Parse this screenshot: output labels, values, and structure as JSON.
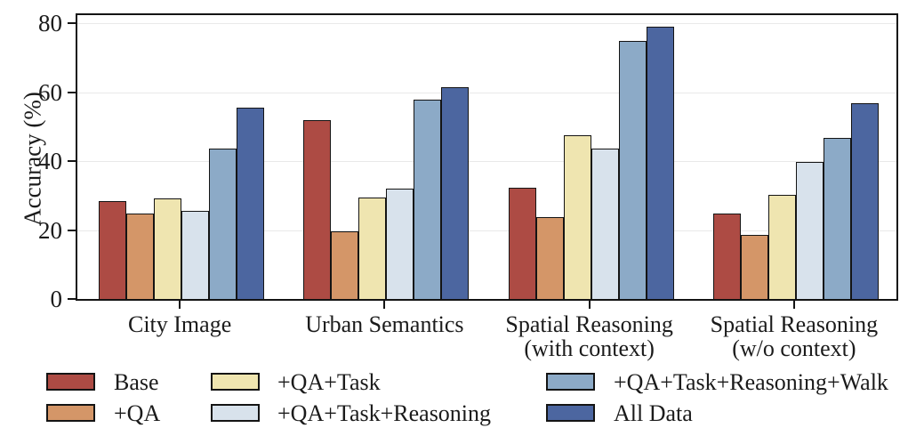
{
  "chart_data": {
    "type": "bar",
    "title": "",
    "ylabel": "Accuracy (%)",
    "ylim": [
      0,
      83
    ],
    "yticks": [
      0,
      20,
      40,
      60,
      80
    ],
    "grid": true,
    "grid_color": "#e9e9e9",
    "axes_box": true,
    "bar_edge_color": "#141414",
    "legend_position": "bottom",
    "categories": [
      "City Image",
      "Urban Semantics",
      "Spatial Reasoning\n(with context)",
      "Spatial Reasoning\n(w/o context)"
    ],
    "series": [
      {
        "name": "Base",
        "color": "#ad4b44",
        "values": [
          28.5,
          52.0,
          32.3,
          24.7
        ]
      },
      {
        "name": "+QA",
        "color": "#d49668",
        "values": [
          24.8,
          19.7,
          23.7,
          18.7
        ]
      },
      {
        "name": "+QA+Task",
        "color": "#efe5b0",
        "values": [
          29.2,
          29.3,
          47.4,
          30.1
        ]
      },
      {
        "name": "+QA+Task+Reasoning",
        "color": "#d8e2ec",
        "values": [
          25.6,
          32.0,
          43.5,
          39.7
        ]
      },
      {
        "name": "+QA+Task+Reasoning+Walk",
        "color": "#8caac7",
        "values": [
          43.5,
          57.7,
          74.9,
          46.7
        ]
      },
      {
        "name": "All Data",
        "color": "#4c66a0",
        "values": [
          55.5,
          61.3,
          78.9,
          56.8
        ]
      }
    ]
  }
}
